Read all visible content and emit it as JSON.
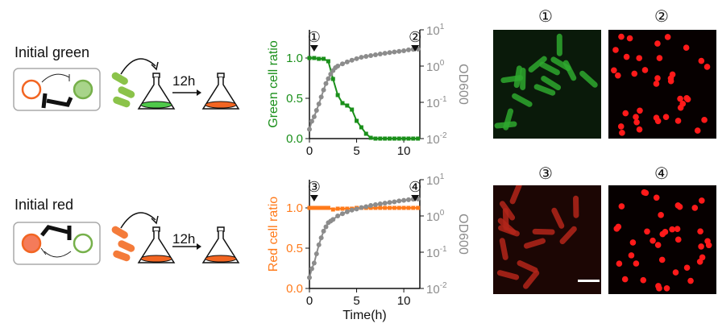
{
  "panels": [
    {
      "label": "Initial green",
      "time_label": "12h",
      "start_color": "#4fc94a",
      "end_color": "#f26522"
    },
    {
      "label": "Initial red",
      "time_label": "12h",
      "start_color": "#f26522",
      "end_color": "#f26522"
    }
  ],
  "colors": {
    "green": "#1a8f1a",
    "orange": "#ff7a1a",
    "gray": "#8c8c8c"
  },
  "chart_data": [
    {
      "type": "line",
      "xlabel": "",
      "ylabel": "Green cell ratio",
      "y2label": "OD600",
      "xlim": [
        0,
        11.7
      ],
      "ylim": [
        0,
        1.35
      ],
      "y2lim": [
        0.01,
        10
      ],
      "y2scale": "log",
      "xticks": [
        "0",
        "5",
        "10"
      ],
      "yticks": [
        "0.0",
        "0.5",
        "1.0"
      ],
      "y2ticks": [
        "10-2",
        "10-1",
        "100",
        "101"
      ],
      "markers": [
        {
          "label": "①",
          "x": 0.5
        },
        {
          "label": "②",
          "x": 11.2
        }
      ],
      "series": [
        {
          "name": "Green cell ratio",
          "color": "#1a8f1a",
          "x": [
            0,
            0.5,
            1,
            1.5,
            2,
            2.5,
            3,
            3.5,
            4,
            4.5,
            5,
            5.5,
            6,
            6.5,
            7,
            7.5,
            8,
            8.5,
            9,
            9.5,
            10,
            10.5,
            11,
            11.5
          ],
          "y": [
            1.0,
            1.0,
            0.99,
            0.99,
            0.96,
            0.74,
            0.54,
            0.44,
            0.41,
            0.36,
            0.22,
            0.14,
            0.06,
            0.01,
            0,
            0,
            0,
            0,
            0,
            0,
            0,
            0,
            0,
            0
          ]
        },
        {
          "name": "OD600",
          "color": "#8c8c8c",
          "axis": "right",
          "x": [
            0,
            0.25,
            0.5,
            0.75,
            1,
            1.25,
            1.5,
            1.75,
            2,
            2.25,
            2.5,
            2.75,
            3,
            3.5,
            4,
            4.5,
            5,
            5.5,
            6,
            6.5,
            7,
            7.5,
            8,
            8.5,
            9,
            9.5,
            10,
            10.5,
            11,
            11.5
          ],
          "y": [
            0.018,
            0.03,
            0.04,
            0.06,
            0.09,
            0.14,
            0.22,
            0.33,
            0.45,
            0.6,
            0.75,
            0.9,
            1.0,
            1.15,
            1.3,
            1.45,
            1.6,
            1.75,
            1.85,
            1.95,
            2.05,
            2.15,
            2.25,
            2.35,
            2.45,
            2.55,
            2.65,
            2.8,
            2.9,
            2.95
          ]
        }
      ]
    },
    {
      "type": "line",
      "xlabel": "Time(h)",
      "ylabel": "Red cell ratio",
      "y2label": "OD600",
      "xlim": [
        0,
        11.7
      ],
      "ylim": [
        0,
        1.35
      ],
      "y2lim": [
        0.01,
        10
      ],
      "y2scale": "log",
      "xticks": [
        "0",
        "5",
        "10"
      ],
      "yticks": [
        "0.0",
        "0.5",
        "1.0"
      ],
      "y2ticks": [
        "10-2",
        "10-1",
        "100",
        "101"
      ],
      "markers": [
        {
          "label": "③",
          "x": 0.5
        },
        {
          "label": "④",
          "x": 11.2
        }
      ],
      "series": [
        {
          "name": "Red cell ratio",
          "color": "#ff7a1a",
          "x": [
            0,
            0.25,
            0.5,
            0.75,
            1,
            1.25,
            1.5,
            1.75,
            2,
            2.5,
            3,
            3.5,
            4,
            4.5,
            5,
            5.5,
            6,
            6.5,
            7,
            7.5,
            8,
            8.5,
            9,
            9.5,
            10,
            10.5,
            11,
            11.5
          ],
          "y": [
            1,
            1,
            1,
            1,
            1,
            1,
            1,
            1,
            1,
            0.98,
            0.99,
            0.99,
            0.99,
            0.99,
            1,
            1,
            1,
            1,
            1,
            1,
            1,
            1,
            1,
            1,
            1,
            1,
            1,
            1
          ]
        },
        {
          "name": "OD600",
          "color": "#8c8c8c",
          "axis": "right",
          "x": [
            0,
            0.25,
            0.5,
            0.75,
            1,
            1.25,
            1.5,
            1.75,
            2,
            2.25,
            2.5,
            3,
            3.5,
            4,
            4.5,
            5,
            5.5,
            6,
            6.5,
            7,
            7.5,
            8,
            8.5,
            9,
            9.5,
            10,
            10.5,
            11,
            11.5
          ],
          "y": [
            0.02,
            0.035,
            0.05,
            0.09,
            0.16,
            0.25,
            0.38,
            0.5,
            0.65,
            0.72,
            0.8,
            1.0,
            1.15,
            1.3,
            1.45,
            1.55,
            1.7,
            1.8,
            1.95,
            2.05,
            2.15,
            2.25,
            2.35,
            2.45,
            2.6,
            2.7,
            2.8,
            2.9,
            2.95
          ]
        }
      ]
    }
  ],
  "images": [
    {
      "label": "①",
      "kind": "green-rods"
    },
    {
      "label": "②",
      "kind": "red-dots"
    },
    {
      "label": "③",
      "kind": "red-rods"
    },
    {
      "label": "④",
      "kind": "red-dots"
    }
  ]
}
